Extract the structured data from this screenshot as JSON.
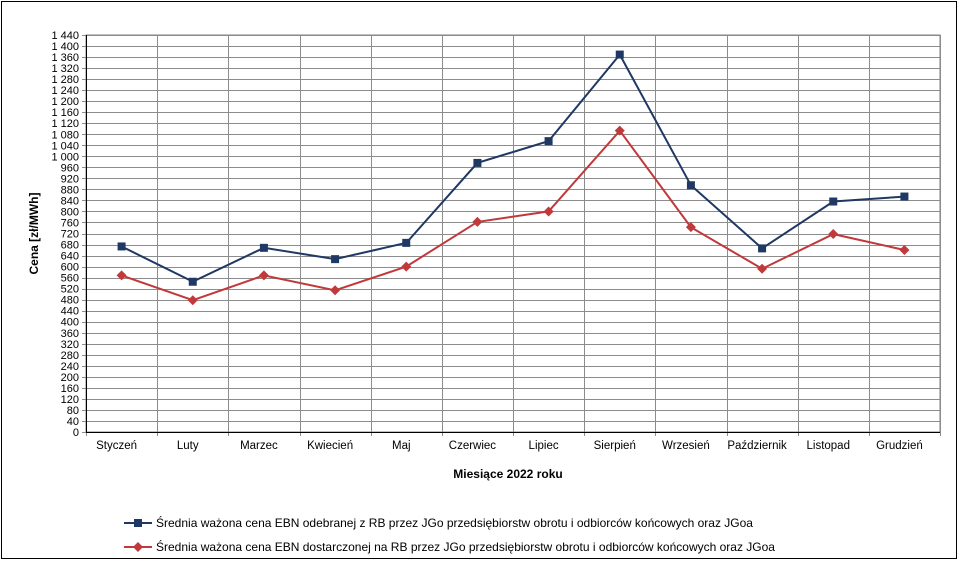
{
  "chart_data": {
    "type": "line",
    "title": "",
    "xlabel": "Miesiące 2022  roku",
    "ylabel": "Cena [zł/MWh]",
    "categories": [
      "Styczeń",
      "Luty",
      "Marzec",
      "Kwiecień",
      "Maj",
      "Czerwiec",
      "Lipiec",
      "Sierpień",
      "Wrzesień",
      "Październik",
      "Listopad",
      "Grudzień"
    ],
    "ylim": [
      0,
      1440
    ],
    "ytick_step": 40,
    "yticks": [
      "0",
      "40",
      "80",
      "120",
      "160",
      "200",
      "240",
      "280",
      "320",
      "360",
      "400",
      "440",
      "480",
      "520",
      "560",
      "600",
      "640",
      "680",
      "720",
      "760",
      "800",
      "840",
      "880",
      "920",
      "960",
      "1 000",
      "1 040",
      "1 080",
      "1 120",
      "1 160",
      "1 200",
      "1 240",
      "1 280",
      "1 320",
      "1 360",
      "1 400",
      "1 440"
    ],
    "grid": true,
    "legend_position": "bottom",
    "series": [
      {
        "name": "Średnia ważona cena EBN odebranej z RB przez JGo przedsiębiorstw obrotu i odbiorców końcowych oraz JGoa",
        "color": "#1f3864",
        "marker": "square",
        "values": [
          673,
          545,
          668,
          627,
          686,
          976,
          1055,
          1369,
          895,
          666,
          836,
          854
        ]
      },
      {
        "name": "Średnia ważona cena EBN dostarczonej na RB przez JGo przedsiębiorstw obrotu i odbiorców końcowych oraz JGoa",
        "color": "#c0393b",
        "marker": "diamond",
        "values": [
          568,
          478,
          568,
          514,
          600,
          762,
          800,
          1093,
          743,
          592,
          718,
          660
        ]
      }
    ]
  }
}
